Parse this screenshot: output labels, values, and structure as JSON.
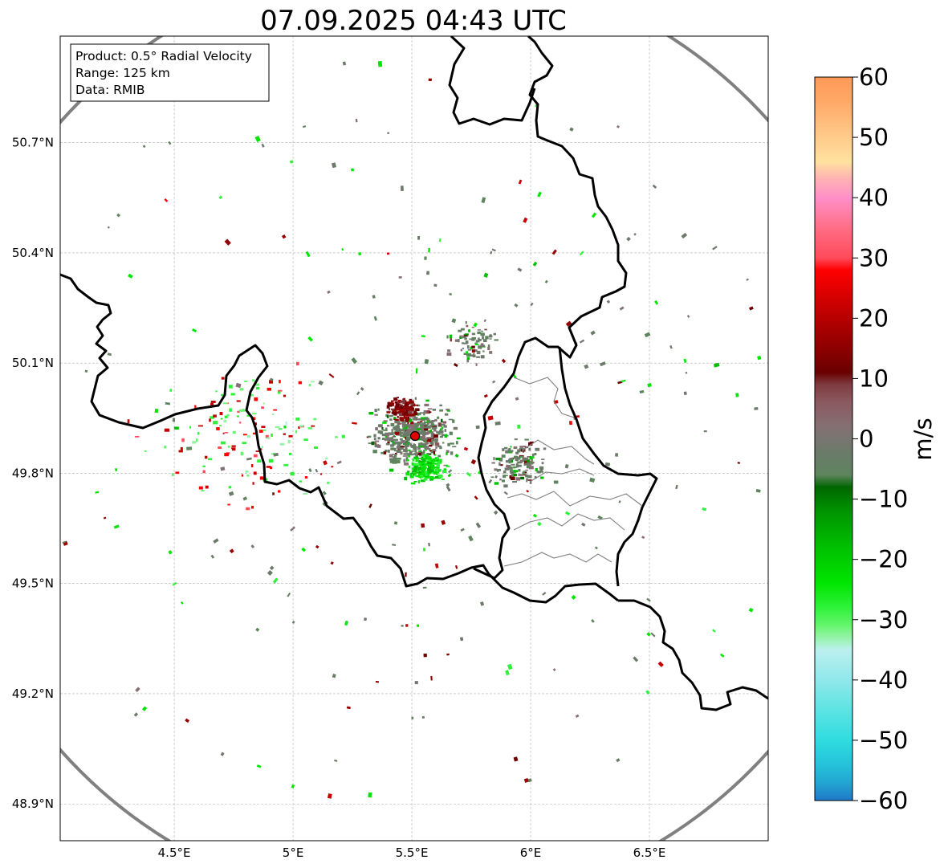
{
  "title": "07.09.2025 04:43 UTC",
  "info_box": {
    "product": "Product: 0.5° Radial Velocity",
    "range": "Range: 125 km",
    "data": "Data: RMIB"
  },
  "axes": {
    "lon_ticks": [
      {
        "value": 4.5,
        "label": "4.5°E"
      },
      {
        "value": 5.0,
        "label": "5°E"
      },
      {
        "value": 5.5,
        "label": "5.5°E"
      },
      {
        "value": 6.0,
        "label": "6°E"
      },
      {
        "value": 6.5,
        "label": "6.5°E"
      }
    ],
    "lat_ticks": [
      {
        "value": 50.7,
        "label": "50.7°N"
      },
      {
        "value": 50.4,
        "label": "50.4°N"
      },
      {
        "value": 50.1,
        "label": "50.1°N"
      },
      {
        "value": 49.8,
        "label": "49.8°N"
      },
      {
        "value": 49.5,
        "label": "49.5°N"
      },
      {
        "value": 49.2,
        "label": "49.2°N"
      },
      {
        "value": 48.9,
        "label": "48.9°N"
      }
    ]
  },
  "colorbar": {
    "unit": "m/s",
    "min": -60,
    "max": 60,
    "ticks": [
      {
        "value": 60,
        "label": "60"
      },
      {
        "value": 50,
        "label": "50"
      },
      {
        "value": 40,
        "label": "40"
      },
      {
        "value": 30,
        "label": "30"
      },
      {
        "value": 20,
        "label": "20"
      },
      {
        "value": 10,
        "label": "10"
      },
      {
        "value": 0,
        "label": "0"
      },
      {
        "value": -10,
        "label": "−10"
      },
      {
        "value": -20,
        "label": "−20"
      },
      {
        "value": -30,
        "label": "−30"
      },
      {
        "value": -40,
        "label": "−40"
      },
      {
        "value": -50,
        "label": "−50"
      },
      {
        "value": -60,
        "label": "−60"
      }
    ],
    "stops": [
      {
        "value": -60,
        "color": "#1f78c8"
      },
      {
        "value": -57,
        "color": "#22a6d2"
      },
      {
        "value": -54,
        "color": "#25c2da"
      },
      {
        "value": -50,
        "color": "#2fdcdf"
      },
      {
        "value": -45,
        "color": "#5de3e3"
      },
      {
        "value": -40,
        "color": "#90e8ea"
      },
      {
        "value": -35,
        "color": "#bcf0ef"
      },
      {
        "value": -33,
        "color": "#96f3a8"
      },
      {
        "value": -31,
        "color": "#66f56e"
      },
      {
        "value": -28,
        "color": "#2ef23a"
      },
      {
        "value": -24,
        "color": "#00e600"
      },
      {
        "value": -18,
        "color": "#00c000"
      },
      {
        "value": -12,
        "color": "#009400"
      },
      {
        "value": -8,
        "color": "#006600"
      },
      {
        "value": -6,
        "color": "#5e845e"
      },
      {
        "value": -2,
        "color": "#6c7a6a"
      },
      {
        "value": 2,
        "color": "#857074"
      },
      {
        "value": 6,
        "color": "#8a5a60"
      },
      {
        "value": 9,
        "color": "#7e3b40"
      },
      {
        "value": 11,
        "color": "#6a0000"
      },
      {
        "value": 16,
        "color": "#960000"
      },
      {
        "value": 22,
        "color": "#c80000"
      },
      {
        "value": 28,
        "color": "#ff0000"
      },
      {
        "value": 30,
        "color": "#ff4a5a"
      },
      {
        "value": 35,
        "color": "#ff6e86"
      },
      {
        "value": 40,
        "color": "#ff8fc8"
      },
      {
        "value": 43,
        "color": "#ffb0b4"
      },
      {
        "value": 46,
        "color": "#ffe19e"
      },
      {
        "value": 52,
        "color": "#ffc080"
      },
      {
        "value": 56,
        "color": "#ffa866"
      },
      {
        "value": 60,
        "color": "#ff9a58"
      }
    ]
  },
  "colors": {
    "range_ring": "#808080",
    "border": "#000000",
    "province": "#808080",
    "radar_site": "#e00000"
  },
  "map": {
    "lon_range": [
      4.02,
      7.0
    ],
    "lat_range": [
      48.8,
      50.99
    ],
    "radar_site": {
      "lon": 5.505,
      "lat": 49.914
    },
    "range_ring_km": 125,
    "echo_fields": [
      {
        "name": "near-field cluster",
        "lon": 5.5,
        "lat": 49.91,
        "spread": 0.16,
        "count": 520
      },
      {
        "name": "south green jet",
        "lon": 5.55,
        "lat": 49.82,
        "spread": 0.08,
        "count": 160
      },
      {
        "name": "north red cluster",
        "lon": 5.45,
        "lat": 49.98,
        "spread": 0.06,
        "count": 120
      },
      {
        "name": "north-east clutter",
        "lon": 5.75,
        "lat": 50.16,
        "spread": 0.1,
        "count": 80
      },
      {
        "name": "luxembourg clutter",
        "lon": 5.95,
        "lat": 49.83,
        "spread": 0.12,
        "count": 140
      },
      {
        "name": "western scatter",
        "lon": 4.8,
        "lat": 49.9,
        "spread": 0.35,
        "count": 150
      }
    ]
  }
}
